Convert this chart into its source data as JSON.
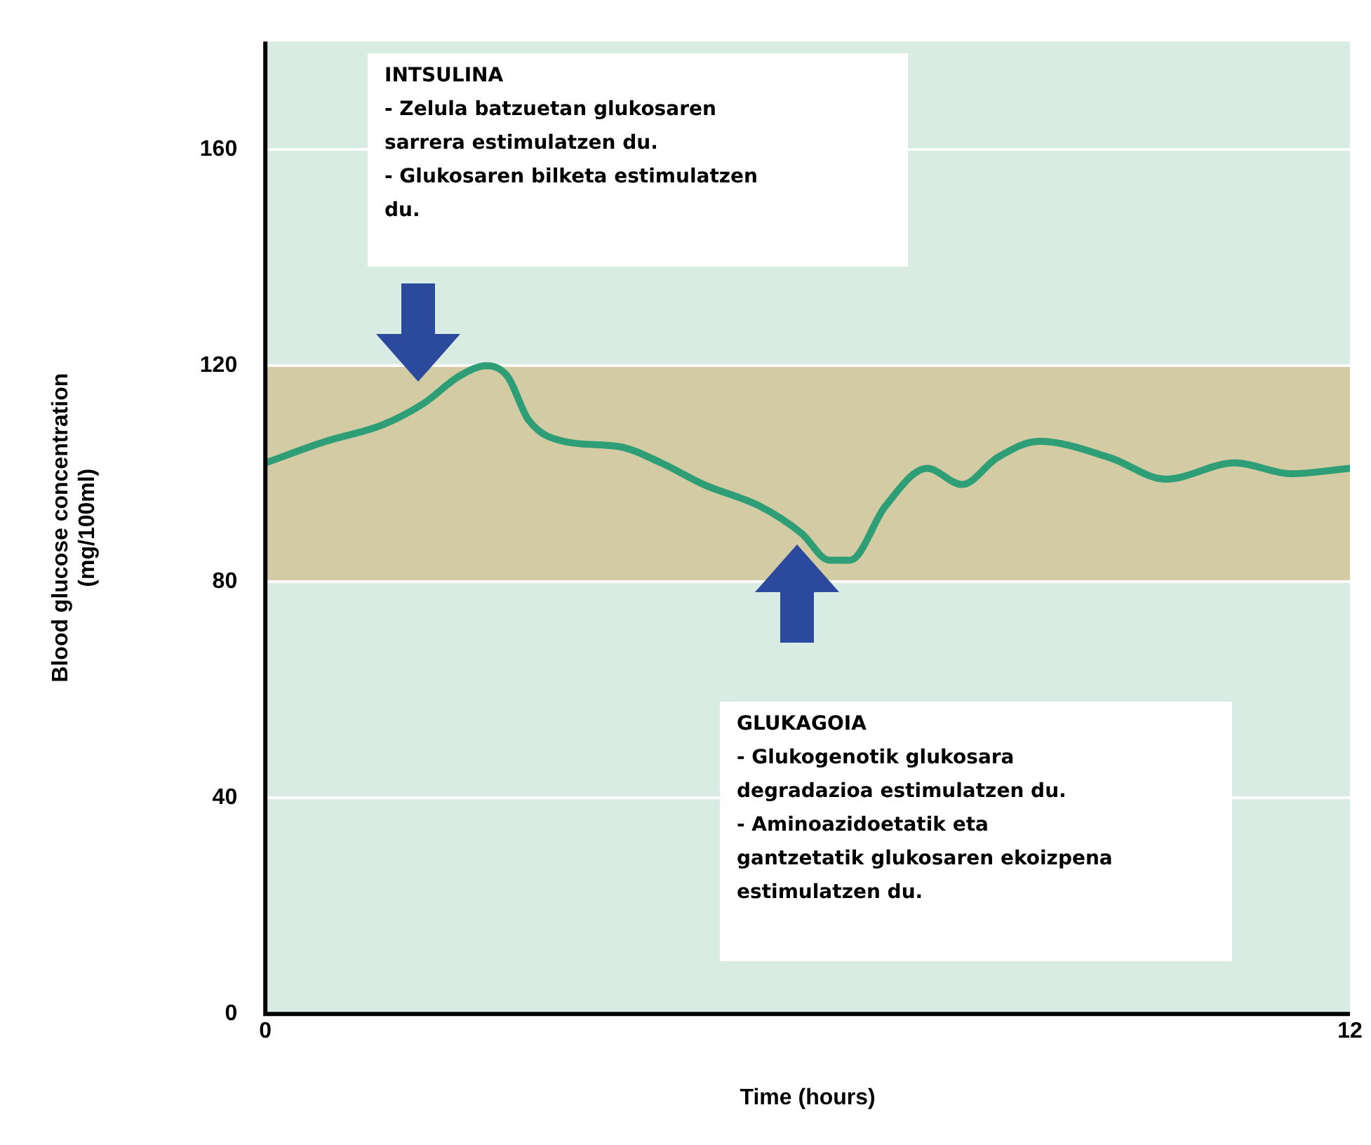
{
  "chart_data": {
    "type": "line",
    "xlabel": "Time (hours)",
    "ylabel": "Blood glucose concentration\n(mg/100ml)",
    "x": [
      0,
      0.67,
      1.29,
      1.75,
      2.14,
      2.45,
      2.68,
      2.91,
      3.3,
      3.92,
      4.38,
      4.85,
      5.47,
      5.93,
      6.24,
      6.47,
      6.86,
      7.32,
      7.71,
      8.1,
      8.56,
      9.34,
      9.96,
      10.73,
      11.35,
      12
    ],
    "series": [
      {
        "color": "#2e9e77",
        "values": [
          102,
          106,
          109,
          113,
          118,
          120,
          118,
          110,
          106,
          105,
          102,
          98,
          94,
          89,
          84,
          84,
          94,
          101,
          98,
          103,
          106,
          103,
          99,
          102,
          100,
          101
        ]
      }
    ],
    "xlim": [
      0,
      12
    ],
    "xticks": [
      0,
      12
    ],
    "ylim": [
      0,
      180
    ],
    "yticks": [
      0,
      40,
      80,
      120,
      160
    ],
    "grid": "y",
    "marker": "none",
    "line_style": "solid",
    "bands": [
      {
        "axis": "y",
        "from": 80,
        "to": 120,
        "color": "#d3cba3"
      }
    ],
    "annotations": [
      "INTSULINA\n- Zelula batzuetan glukosaren\nsarrera estimulatzen du.\n- Glukosaren bilketa estimulatzen\ndu.",
      "GLUKAGOIA\n- Glukogenotik glukosara\ndegradazioa estimulatzen du.\n- Aminoazidoetatik eta\ngantzetatik glukosaren ekoizpena\nestimulatzen du."
    ]
  }
}
